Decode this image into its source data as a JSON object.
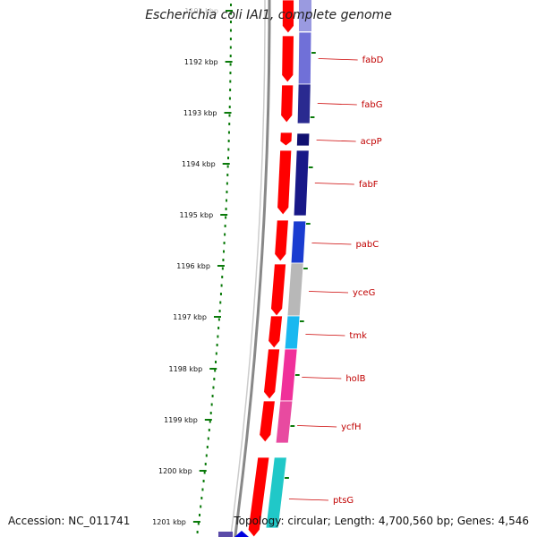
{
  "title": "Escherichia coli IAI1, complete genome",
  "footer": {
    "accession": "Accession: NC_011741",
    "summary": "Topology: circular; Length: 4,700,560 bp; Genes: 4,546"
  },
  "ruler": {
    "unit": "kbp",
    "ticks": [
      {
        "label": "1191 kbp",
        "faded": true
      },
      {
        "label": "1192 kbp"
      },
      {
        "label": "1193 kbp"
      },
      {
        "label": "1194 kbp"
      },
      {
        "label": "1195 kbp"
      },
      {
        "label": "1196 kbp"
      },
      {
        "label": "1197 kbp"
      },
      {
        "label": "1198 kbp"
      },
      {
        "label": "1199 kbp"
      },
      {
        "label": "1200 kbp"
      },
      {
        "label": "1201 kbp"
      }
    ]
  },
  "genes": [
    {
      "name": "fabD",
      "color": "#7070d8"
    },
    {
      "name": "fabG",
      "color": "#2a2a90"
    },
    {
      "name": "acpP",
      "color": "#101070"
    },
    {
      "name": "fabF",
      "color": "#181888"
    },
    {
      "name": "pabC",
      "color": "#1a3cd0"
    },
    {
      "name": "yceG",
      "color": "#b8b8b8"
    },
    {
      "name": "tmk",
      "color": "#1ab8f0"
    },
    {
      "name": "holB",
      "color": "#f0309a"
    },
    {
      "name": "ycfH",
      "color": "#e84aa0"
    },
    {
      "name": "ptsG",
      "color": "#20c8c8"
    }
  ],
  "colors": {
    "forward_strand": "#ff0000",
    "backbone": "#888888",
    "tick": "#0a7a0a",
    "label_text": "#c00000",
    "leader_line": "#cc0000"
  }
}
